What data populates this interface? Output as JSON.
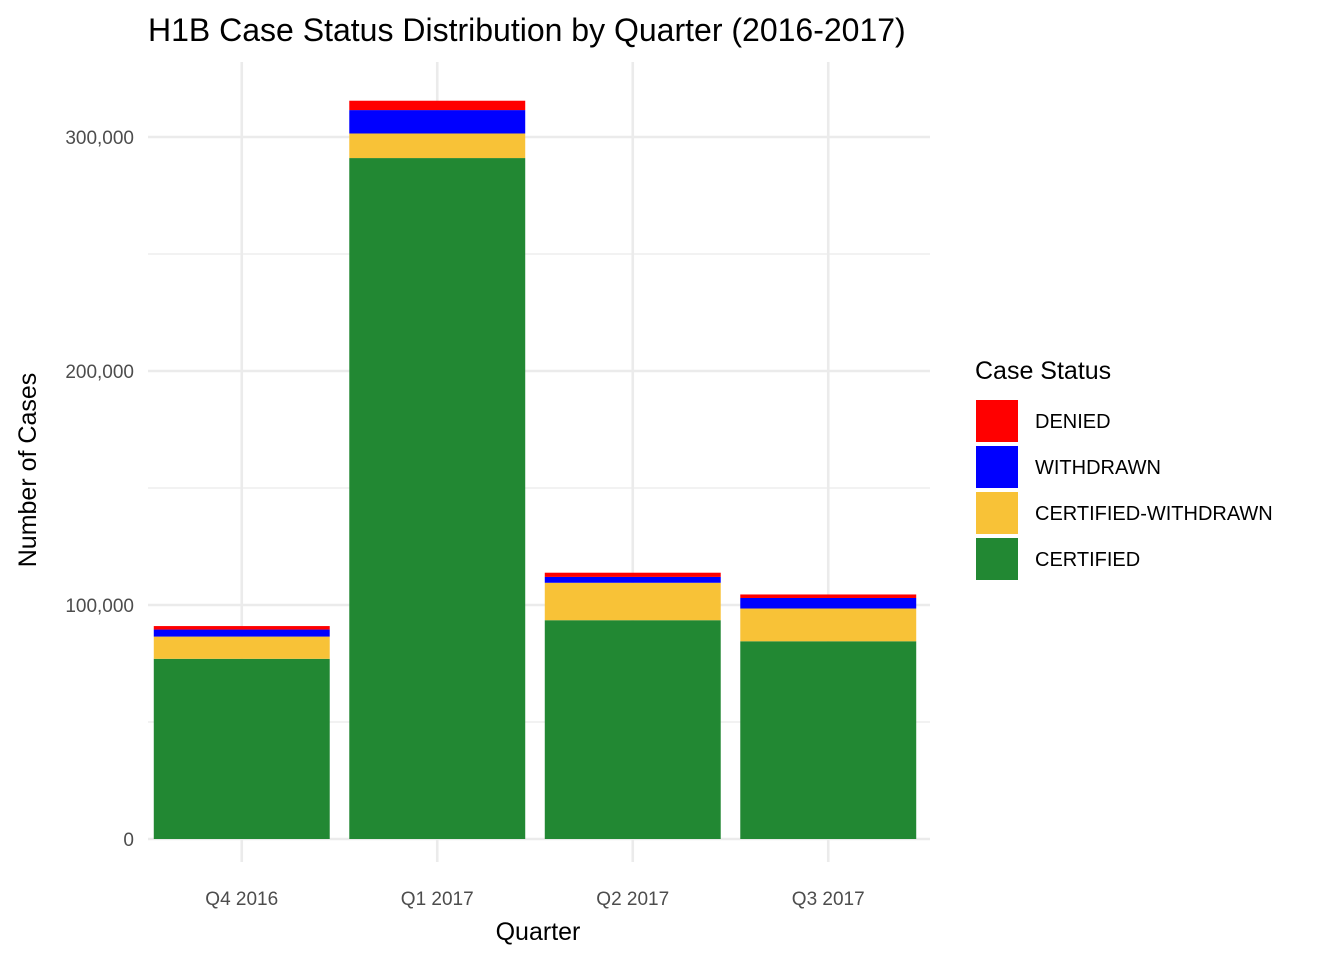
{
  "chart_data": {
    "type": "bar",
    "stacked": true,
    "title": "H1B Case Status Distribution by Quarter (2016-2017)",
    "xlabel": "Quarter",
    "ylabel": "Number of Cases",
    "categories": [
      "Q4 2016",
      "Q1 2017",
      "Q2 2017",
      "Q3 2017"
    ],
    "ylim": [
      0,
      330000
    ],
    "yticks": [
      0,
      100000,
      200000,
      300000
    ],
    "ytick_labels": [
      "0",
      "100,000",
      "200,000",
      "300,000"
    ],
    "grid": true,
    "legend": {
      "title": "Case Status",
      "position": "right",
      "entries": [
        "DENIED",
        "WITHDRAWN",
        "CERTIFIED-WITHDRAWN",
        "CERTIFIED"
      ]
    },
    "series": [
      {
        "name": "CERTIFIED",
        "color": "#228833",
        "values": [
          77000,
          291000,
          93500,
          84500
        ]
      },
      {
        "name": "CERTIFIED-WITHDRAWN",
        "color": "#F8C237",
        "values": [
          9500,
          10500,
          16000,
          14000
        ]
      },
      {
        "name": "WITHDRAWN",
        "color": "#0000FF",
        "values": [
          3000,
          10000,
          2500,
          4500
        ]
      },
      {
        "name": "DENIED",
        "color": "#FF0000",
        "values": [
          1500,
          4000,
          1800,
          1500
        ]
      }
    ]
  }
}
